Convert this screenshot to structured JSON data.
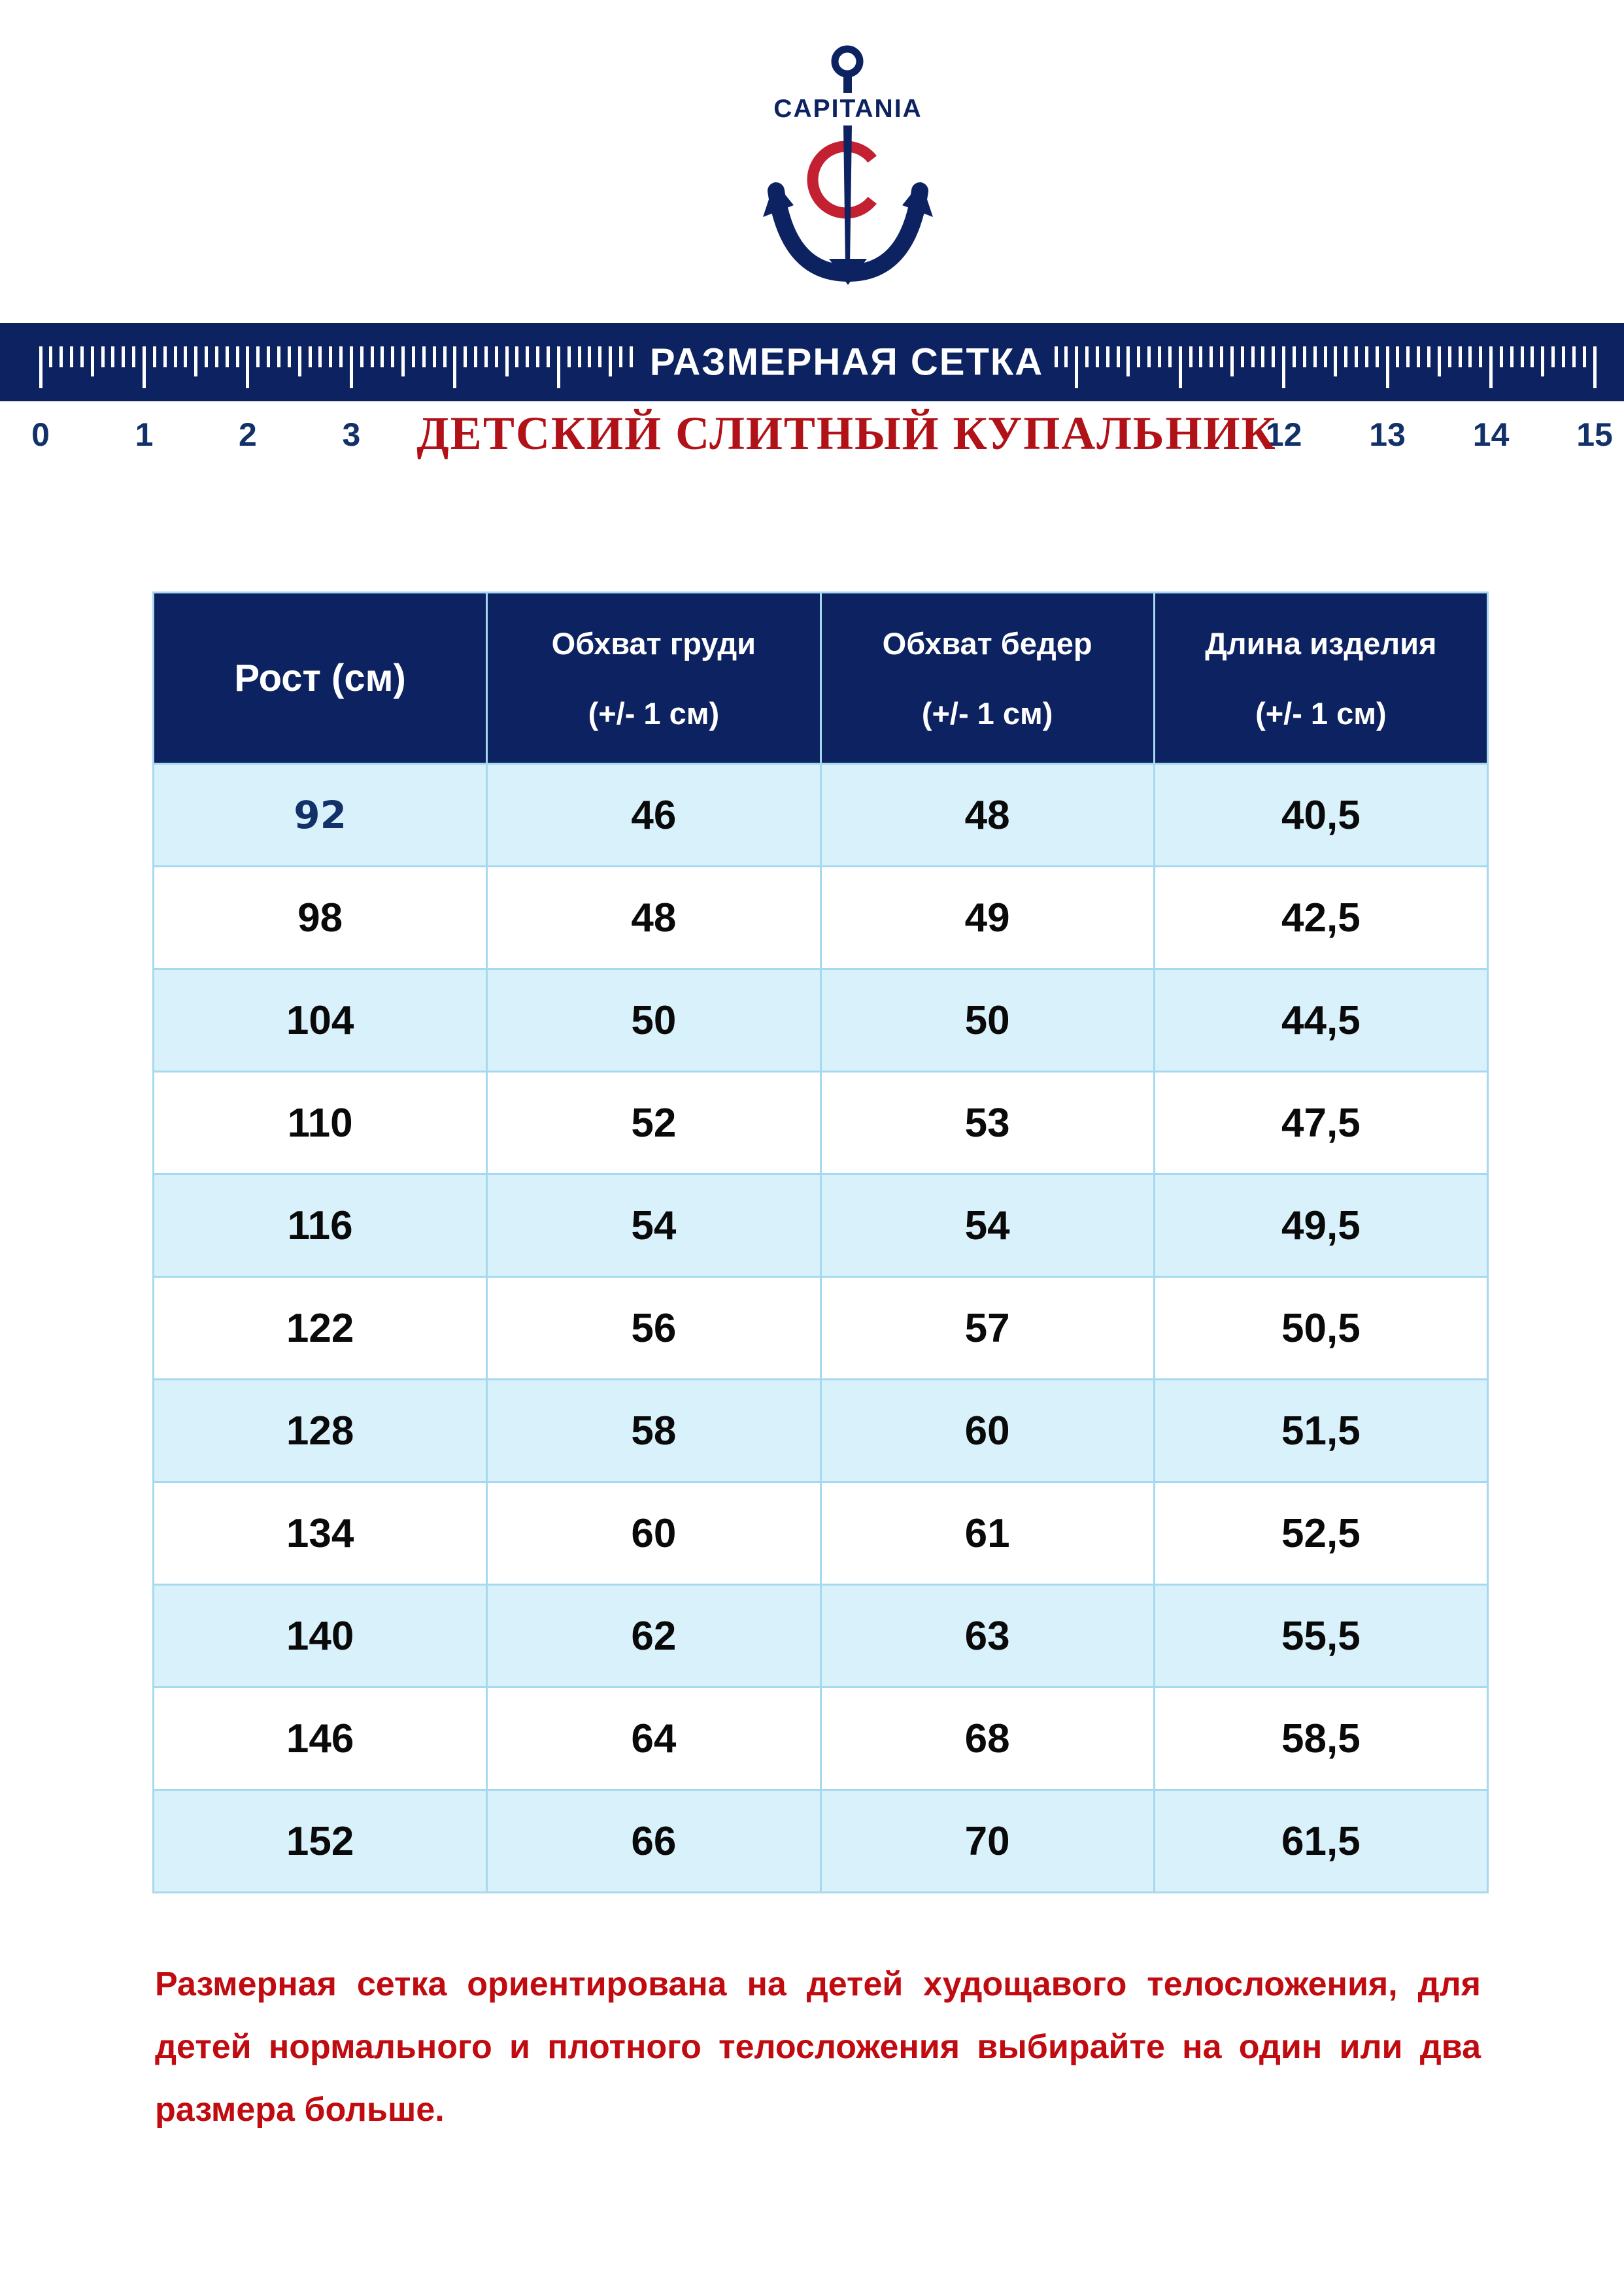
{
  "colors": {
    "navy": "#0d2261",
    "grid_blue": "#a6d9ef",
    "row_blue": "#d9f1fb",
    "ruler_number_navy": "#123168",
    "table_text": "#0a0a0a",
    "logo_red": "#c32031",
    "product_title_red": "#b01218",
    "note_red": "#c00b10"
  },
  "logo": {
    "brand": "CAPITANIA"
  },
  "ruler": {
    "title": "РАЗМЕРНАЯ СЕТКА",
    "labels": [
      "0",
      "1",
      "2",
      "3",
      "12",
      "13",
      "14",
      "15"
    ]
  },
  "product": {
    "title": "ДЕТСКИЙ СЛИТНЫЙ КУПАЛЬНИК"
  },
  "size_table": {
    "columns": [
      {
        "title": "Рост (см)",
        "subtitle": ""
      },
      {
        "title": "Обхват груди",
        "subtitle": "(+/- 1 см)"
      },
      {
        "title": "Обхват бедер",
        "subtitle": "(+/- 1 см)"
      },
      {
        "title": "Длина изделия",
        "subtitle": "(+/- 1 см)"
      }
    ],
    "rows": [
      [
        "92",
        "46",
        "48",
        "40,5"
      ],
      [
        "98",
        "48",
        "49",
        "42,5"
      ],
      [
        "104",
        "50",
        "50",
        "44,5"
      ],
      [
        "110",
        "52",
        "53",
        "47,5"
      ],
      [
        "116",
        "54",
        "54",
        "49,5"
      ],
      [
        "122",
        "56",
        "57",
        "50,5"
      ],
      [
        "128",
        "58",
        "60",
        "51,5"
      ],
      [
        "134",
        "60",
        "61",
        "52,5"
      ],
      [
        "140",
        "62",
        "63",
        "55,5"
      ],
      [
        "146",
        "64",
        "68",
        "58,5"
      ],
      [
        "152",
        "66",
        "70",
        "61,5"
      ]
    ],
    "highlight_cell": {
      "row": 0,
      "col": 0
    }
  },
  "note": {
    "text": "Размерная сетка ориентирована на детей худощавого телосложения, для детей нормального и плотного телосложения выбирайте на один или два размера больше."
  }
}
